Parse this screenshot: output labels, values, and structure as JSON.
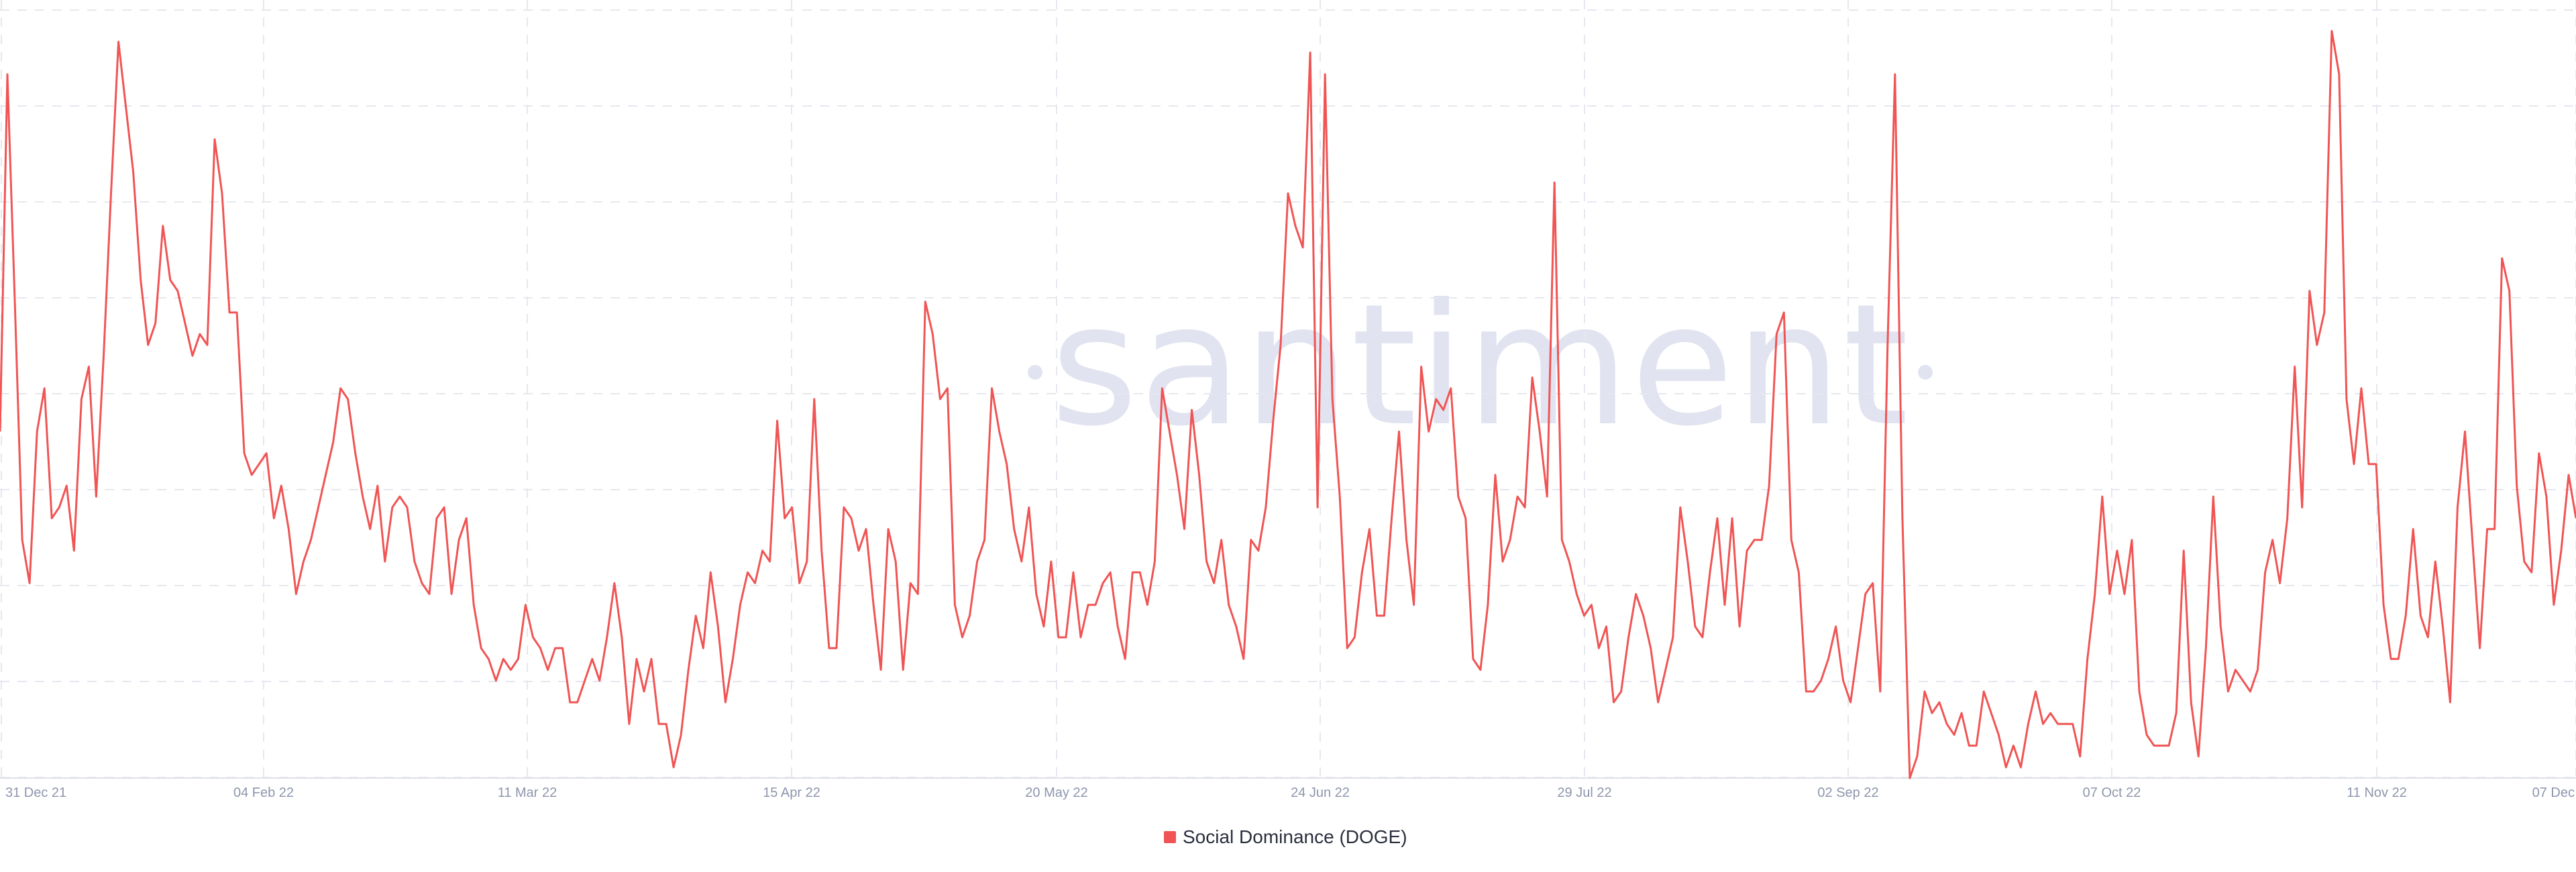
{
  "watermark": {
    "text": "santiment"
  },
  "chart_data": {
    "type": "line",
    "title": "",
    "xlabel": "",
    "ylabel": "",
    "grid": true,
    "legend_position": "bottom-center",
    "x_start": "2021-12-31",
    "x_ticks": [
      "31 Dec 21",
      "04 Feb 22",
      "11 Mar 22",
      "15 Apr 22",
      "20 May 22",
      "24 Jun 22",
      "29 Jul 22",
      "02 Sep 22",
      "07 Oct 22",
      "11 Nov 22",
      "07 Dec"
    ],
    "series": [
      {
        "name": "Social Dominance (DOGE)",
        "color": "#f05454",
        "values": [
          0.62,
          0.95,
          0.74,
          0.52,
          0.48,
          0.62,
          0.66,
          0.54,
          0.55,
          0.57,
          0.51,
          0.65,
          0.68,
          0.56,
          0.69,
          0.84,
          0.98,
          0.92,
          0.86,
          0.76,
          0.7,
          0.72,
          0.81,
          0.76,
          0.75,
          0.72,
          0.69,
          0.71,
          0.7,
          0.89,
          0.84,
          0.73,
          0.73,
          0.6,
          0.58,
          0.59,
          0.6,
          0.54,
          0.57,
          0.53,
          0.47,
          0.5,
          0.52,
          0.55,
          0.58,
          0.61,
          0.66,
          0.65,
          0.6,
          0.56,
          0.53,
          0.57,
          0.5,
          0.55,
          0.56,
          0.55,
          0.5,
          0.48,
          0.47,
          0.54,
          0.55,
          0.47,
          0.52,
          0.54,
          0.46,
          0.42,
          0.41,
          0.39,
          0.41,
          0.4,
          0.41,
          0.46,
          0.43,
          0.42,
          0.4,
          0.42,
          0.42,
          0.37,
          0.37,
          0.39,
          0.41,
          0.39,
          0.43,
          0.48,
          0.43,
          0.35,
          0.41,
          0.38,
          0.41,
          0.35,
          0.35,
          0.31,
          0.34,
          0.4,
          0.45,
          0.42,
          0.49,
          0.44,
          0.37,
          0.41,
          0.46,
          0.49,
          0.48,
          0.51,
          0.5,
          0.63,
          0.54,
          0.55,
          0.48,
          0.5,
          0.65,
          0.51,
          0.42,
          0.42,
          0.55,
          0.54,
          0.51,
          0.53,
          0.46,
          0.4,
          0.53,
          0.5,
          0.4,
          0.48,
          0.47,
          0.74,
          0.71,
          0.65,
          0.66,
          0.46,
          0.43,
          0.45,
          0.5,
          0.52,
          0.66,
          0.62,
          0.59,
          0.53,
          0.5,
          0.55,
          0.47,
          0.44,
          0.5,
          0.43,
          0.43,
          0.49,
          0.43,
          0.46,
          0.46,
          0.48,
          0.49,
          0.44,
          0.41,
          0.49,
          0.49,
          0.46,
          0.5,
          0.66,
          0.62,
          0.58,
          0.53,
          0.64,
          0.58,
          0.5,
          0.48,
          0.52,
          0.46,
          0.44,
          0.41,
          0.52,
          0.51,
          0.55,
          0.63,
          0.7,
          0.84,
          0.81,
          0.79,
          0.97,
          0.55,
          0.95,
          0.65,
          0.56,
          0.42,
          0.43,
          0.49,
          0.53,
          0.45,
          0.45,
          0.54,
          0.62,
          0.52,
          0.46,
          0.68,
          0.62,
          0.65,
          0.64,
          0.66,
          0.56,
          0.54,
          0.41,
          0.4,
          0.46,
          0.58,
          0.5,
          0.52,
          0.56,
          0.55,
          0.67,
          0.62,
          0.56,
          0.85,
          0.52,
          0.5,
          0.47,
          0.45,
          0.46,
          0.42,
          0.44,
          0.37,
          0.38,
          0.43,
          0.47,
          0.45,
          0.42,
          0.37,
          0.4,
          0.43,
          0.55,
          0.5,
          0.44,
          0.43,
          0.49,
          0.54,
          0.46,
          0.54,
          0.44,
          0.51,
          0.52,
          0.52,
          0.57,
          0.71,
          0.73,
          0.52,
          0.49,
          0.38,
          0.38,
          0.39,
          0.41,
          0.44,
          0.39,
          0.37,
          0.42,
          0.47,
          0.48,
          0.38,
          0.7,
          0.95,
          0.54,
          0.3,
          0.32,
          0.38,
          0.36,
          0.37,
          0.35,
          0.34,
          0.36,
          0.33,
          0.33,
          0.38,
          0.36,
          0.34,
          0.31,
          0.33,
          0.31,
          0.35,
          0.38,
          0.35,
          0.36,
          0.35,
          0.35,
          0.35,
          0.32,
          0.41,
          0.47,
          0.56,
          0.47,
          0.51,
          0.47,
          0.52,
          0.38,
          0.34,
          0.33,
          0.33,
          0.33,
          0.36,
          0.51,
          0.37,
          0.32,
          0.42,
          0.56,
          0.44,
          0.38,
          0.4,
          0.39,
          0.38,
          0.4,
          0.49,
          0.52,
          0.48,
          0.54,
          0.68,
          0.55,
          0.75,
          0.7,
          0.73,
          0.99,
          0.95,
          0.65,
          0.59,
          0.66,
          0.59,
          0.59,
          0.46,
          0.41,
          0.41,
          0.45,
          0.53,
          0.45,
          0.43,
          0.5,
          0.44,
          0.37,
          0.55,
          0.62,
          0.52,
          0.42,
          0.53,
          0.53,
          0.78,
          0.75,
          0.57,
          0.5,
          0.49,
          0.6,
          0.56,
          0.46,
          0.51,
          0.58,
          0.54
        ]
      }
    ]
  }
}
